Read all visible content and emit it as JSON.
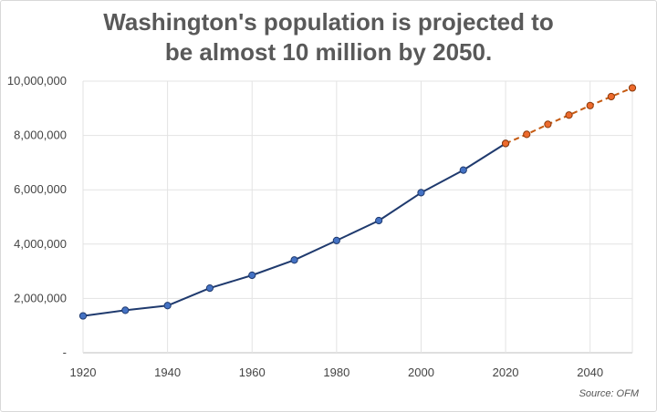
{
  "chart_data": {
    "type": "line",
    "title_lines": [
      "Washington's population is projected to",
      "be almost 10 million by 2050."
    ],
    "source": "Source: OFM",
    "xlim": [
      1920,
      2050
    ],
    "ylim": [
      0,
      10000000
    ],
    "x_ticks": [
      1920,
      1940,
      1960,
      1980,
      2000,
      2020,
      2040
    ],
    "x_tick_labels": [
      "1920",
      "1940",
      "1960",
      "1980",
      "2000",
      "2020",
      "2040"
    ],
    "y_ticks": [
      0,
      2000000,
      4000000,
      6000000,
      8000000,
      10000000
    ],
    "y_tick_labels": [
      "-",
      "2,000,000",
      "4,000,000",
      "6,000,000",
      "8,000,000",
      "10,000,000"
    ],
    "grid": true,
    "series": [
      {
        "style": "solid",
        "color": "#1f3a6e",
        "marker_color": "#4472c4",
        "x": [
          1920,
          1930,
          1940,
          1950,
          1960,
          1970,
          1980,
          1990,
          2000,
          2010,
          2020
        ],
        "values": [
          1356621,
          1563396,
          1736191,
          2378963,
          2853214,
          3413244,
          4132353,
          4866669,
          5894143,
          6724540,
          7706310
        ]
      },
      {
        "style": "dashed",
        "color": "#c55a11",
        "marker_color": "#ed6a2c",
        "x": [
          2020,
          2025,
          2030,
          2035,
          2040,
          2045,
          2050
        ],
        "values": [
          7706310,
          8040000,
          8410000,
          8750000,
          9100000,
          9430000,
          9750000
        ]
      }
    ]
  }
}
